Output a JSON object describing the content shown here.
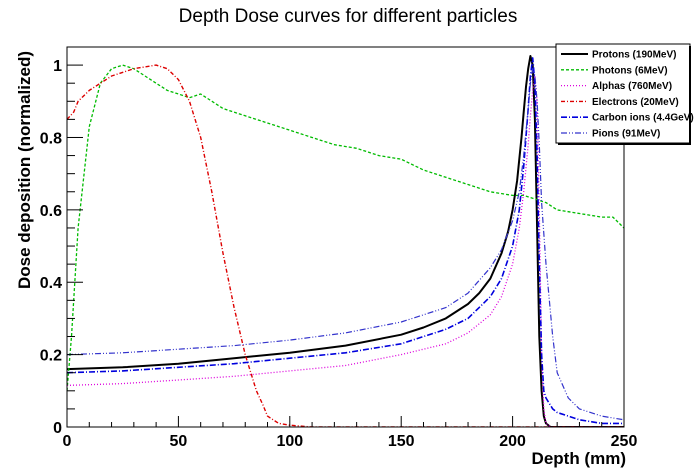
{
  "chart_data": {
    "type": "line",
    "title": "Depth Dose curves for different particles",
    "xlabel": "Depth (mm)",
    "ylabel": "Dose deposition (normalized)",
    "xlim": [
      0,
      250
    ],
    "ylim": [
      0,
      1.05
    ],
    "grid": false,
    "legend_position": "top-right",
    "x_ticks": [
      {
        "value": 0,
        "label": "0"
      },
      {
        "value": 50,
        "label": "50"
      },
      {
        "value": 100,
        "label": "100"
      },
      {
        "value": 150,
        "label": "150"
      },
      {
        "value": 200,
        "label": "200"
      },
      {
        "value": 250,
        "label": "250"
      }
    ],
    "y_ticks": [
      {
        "value": 0,
        "label": "0"
      },
      {
        "value": 0.2,
        "label": "0.2"
      },
      {
        "value": 0.4,
        "label": "0.4"
      },
      {
        "value": 0.6,
        "label": "0.6"
      },
      {
        "value": 0.8,
        "label": "0.8"
      },
      {
        "value": 1,
        "label": "1"
      }
    ],
    "series": [
      {
        "name": "Protons (190MeV)",
        "color": "#000000",
        "dash": "",
        "width": 2,
        "x": [
          0,
          25,
          50,
          75,
          100,
          125,
          150,
          160,
          170,
          180,
          185,
          190,
          195,
          198,
          200,
          202,
          204,
          205,
          206,
          207,
          208,
          209,
          210,
          211,
          212,
          213,
          214,
          215,
          217,
          220,
          230,
          250
        ],
        "y": [
          0.16,
          0.165,
          0.175,
          0.19,
          0.205,
          0.225,
          0.255,
          0.275,
          0.3,
          0.34,
          0.37,
          0.41,
          0.48,
          0.54,
          0.6,
          0.68,
          0.8,
          0.87,
          0.94,
          0.99,
          1.025,
          1.0,
          0.85,
          0.55,
          0.25,
          0.1,
          0.03,
          0.01,
          0.0,
          0.0,
          0.0,
          0.0
        ]
      },
      {
        "name": "Photons (6MeV)",
        "color": "#00bb00",
        "dash": "3,2",
        "width": 1.3,
        "x": [
          0,
          2,
          5,
          10,
          15,
          20,
          25,
          30,
          35,
          40,
          45,
          50,
          55,
          60,
          70,
          80,
          90,
          100,
          110,
          120,
          130,
          140,
          150,
          160,
          170,
          180,
          190,
          200,
          205,
          210,
          215,
          220,
          230,
          240,
          245,
          250
        ],
        "y": [
          0.1,
          0.25,
          0.55,
          0.83,
          0.95,
          0.99,
          1.0,
          0.99,
          0.97,
          0.95,
          0.93,
          0.92,
          0.91,
          0.92,
          0.88,
          0.86,
          0.84,
          0.82,
          0.8,
          0.78,
          0.77,
          0.75,
          0.74,
          0.71,
          0.69,
          0.67,
          0.65,
          0.64,
          0.64,
          0.63,
          0.62,
          0.6,
          0.59,
          0.58,
          0.58,
          0.55
        ]
      },
      {
        "name": "Alphas (760MeV)",
        "color": "#dd00dd",
        "dash": "1,2",
        "width": 1.3,
        "x": [
          0,
          25,
          50,
          75,
          100,
          125,
          150,
          170,
          180,
          190,
          195,
          200,
          203,
          205,
          207,
          208,
          209,
          210,
          211,
          212,
          213,
          214,
          215,
          217,
          220,
          230,
          250
        ],
        "y": [
          0.115,
          0.12,
          0.13,
          0.14,
          0.155,
          0.17,
          0.2,
          0.23,
          0.26,
          0.31,
          0.36,
          0.45,
          0.55,
          0.65,
          0.78,
          0.86,
          0.93,
          0.97,
          0.9,
          0.6,
          0.2,
          0.05,
          0.01,
          0.0,
          0.0,
          0.0,
          0.0
        ]
      },
      {
        "name": "Electrons (20MeV)",
        "color": "#dd0000",
        "dash": "4,2,1,2",
        "width": 1.4,
        "x": [
          0,
          3,
          5,
          10,
          20,
          30,
          40,
          45,
          50,
          55,
          60,
          65,
          70,
          75,
          80,
          85,
          88,
          90,
          95,
          100,
          110,
          150,
          200,
          250
        ],
        "y": [
          0.85,
          0.87,
          0.9,
          0.93,
          0.97,
          0.99,
          1.0,
          0.99,
          0.96,
          0.9,
          0.8,
          0.65,
          0.48,
          0.33,
          0.2,
          0.1,
          0.06,
          0.03,
          0.01,
          0.005,
          0.0,
          0.0,
          0.0,
          0.0
        ]
      },
      {
        "name": "Carbon ions (4.4GeV)",
        "color": "#0000dd",
        "dash": "6,2,1,2",
        "width": 1.6,
        "x": [
          0,
          25,
          50,
          75,
          100,
          125,
          150,
          170,
          180,
          190,
          195,
          200,
          203,
          205,
          207,
          208,
          209,
          210,
          211,
          212,
          213,
          214,
          215,
          216,
          217,
          218,
          220,
          225,
          230,
          240,
          250
        ],
        "y": [
          0.15,
          0.155,
          0.165,
          0.175,
          0.19,
          0.205,
          0.23,
          0.27,
          0.3,
          0.36,
          0.41,
          0.5,
          0.6,
          0.72,
          0.88,
          0.97,
          1.02,
          0.95,
          0.75,
          0.45,
          0.2,
          0.1,
          0.08,
          0.07,
          0.06,
          0.05,
          0.04,
          0.03,
          0.02,
          0.01,
          0.01
        ]
      },
      {
        "name": "Pions (91MeV)",
        "color": "#3333cc",
        "dash": "6,2,1,2,1,2",
        "width": 1.2,
        "x": [
          0,
          25,
          50,
          75,
          100,
          125,
          150,
          170,
          180,
          190,
          195,
          200,
          203,
          205,
          207,
          208,
          209,
          210,
          211,
          212,
          213,
          215,
          218,
          220,
          225,
          230,
          240,
          250
        ],
        "y": [
          0.2,
          0.205,
          0.215,
          0.225,
          0.24,
          0.26,
          0.29,
          0.33,
          0.37,
          0.44,
          0.49,
          0.57,
          0.65,
          0.75,
          0.88,
          0.95,
          0.99,
          0.97,
          0.9,
          0.78,
          0.62,
          0.45,
          0.25,
          0.15,
          0.08,
          0.05,
          0.03,
          0.02
        ]
      }
    ]
  }
}
